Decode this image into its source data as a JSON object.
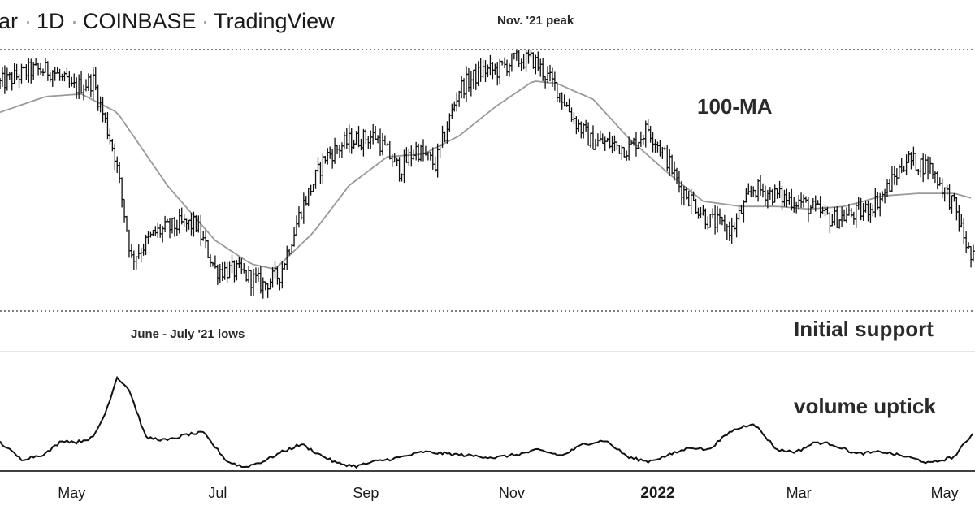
{
  "header": {
    "symbol_fragment": "ar",
    "interval": "1D",
    "exchange": "COINBASE",
    "source": "TradingView",
    "separator": "·"
  },
  "annotations": {
    "peak": "Nov. '21 peak",
    "lows": "June - July '21 lows",
    "ma": "100-MA",
    "support": "Initial support",
    "volume": "volume uptick"
  },
  "x_axis": {
    "ticks": [
      {
        "label": "May",
        "bold": false,
        "date": "2021-05-01"
      },
      {
        "label": "Jul",
        "bold": false,
        "date": "2021-07-01"
      },
      {
        "label": "Sep",
        "bold": false,
        "date": "2021-09-01"
      },
      {
        "label": "Nov",
        "bold": false,
        "date": "2021-11-01"
      },
      {
        "label": "2022",
        "bold": true,
        "date": "2022-01-01"
      },
      {
        "label": "Mar",
        "bold": false,
        "date": "2022-03-01"
      },
      {
        "label": "May",
        "bold": false,
        "date": "2022-05-01"
      }
    ]
  },
  "colors": {
    "price_bars": "#111111",
    "moving_average": "#9a9a9a",
    "volume_line": "#111111",
    "reference_lines": "#555555",
    "panel_divider": "#cccccc",
    "axis_line": "#000000"
  },
  "chart_data": [
    {
      "type": "ohlc",
      "y_axis_labels": "none shown",
      "x_range": [
        "2021-04-01",
        "2022-05-13"
      ],
      "reference_levels": [
        {
          "label": "Nov. '21 peak",
          "relative_level": 1.0
        },
        {
          "label": "June - July '21 lows / Initial support",
          "relative_level": 0.0
        }
      ],
      "price_series": {
        "note": "relative price levels on a 0 (June-July '21 lows) to 1 (Nov. '21 peak) scale",
        "x": [
          "2021-04-01",
          "2021-04-14",
          "2021-04-23",
          "2021-05-01",
          "2021-05-10",
          "2021-05-19",
          "2021-05-26",
          "2021-06-05",
          "2021-06-15",
          "2021-06-22",
          "2021-06-30",
          "2021-07-10",
          "2021-07-20",
          "2021-07-27",
          "2021-08-05",
          "2021-08-15",
          "2021-08-25",
          "2021-09-05",
          "2021-09-15",
          "2021-09-22",
          "2021-09-30",
          "2021-10-10",
          "2021-10-20",
          "2021-10-26",
          "2021-11-02",
          "2021-11-10",
          "2021-11-20",
          "2021-11-28",
          "2021-12-04",
          "2021-12-12",
          "2021-12-20",
          "2021-12-28",
          "2022-01-05",
          "2022-01-10",
          "2022-01-22",
          "2022-02-01",
          "2022-02-10",
          "2022-02-24",
          "2022-03-01",
          "2022-03-15",
          "2022-03-28",
          "2022-04-05",
          "2022-04-15",
          "2022-04-25",
          "2022-05-05",
          "2022-05-12"
        ],
        "y": [
          0.87,
          0.92,
          0.92,
          0.85,
          0.88,
          0.6,
          0.2,
          0.3,
          0.33,
          0.33,
          0.16,
          0.15,
          0.1,
          0.14,
          0.39,
          0.59,
          0.65,
          0.67,
          0.54,
          0.62,
          0.56,
          0.85,
          0.92,
          0.92,
          0.96,
          0.96,
          0.85,
          0.72,
          0.65,
          0.64,
          0.62,
          0.7,
          0.58,
          0.48,
          0.35,
          0.31,
          0.47,
          0.43,
          0.42,
          0.35,
          0.38,
          0.44,
          0.58,
          0.55,
          0.4,
          0.2
        ]
      },
      "moving_average": {
        "name": "100-MA",
        "x": [
          "2021-04-01",
          "2021-04-20",
          "2021-05-05",
          "2021-05-20",
          "2021-06-10",
          "2021-06-30",
          "2021-07-15",
          "2021-07-25",
          "2021-08-10",
          "2021-08-25",
          "2021-09-10",
          "2021-09-25",
          "2021-10-10",
          "2021-10-25",
          "2021-11-10",
          "2021-11-20",
          "2021-12-05",
          "2021-12-20",
          "2022-01-05",
          "2022-01-20",
          "2022-02-05",
          "2022-02-20",
          "2022-03-05",
          "2022-03-20",
          "2022-04-05",
          "2022-04-20",
          "2022-05-05",
          "2022-05-13"
        ],
        "y": [
          0.76,
          0.82,
          0.83,
          0.76,
          0.48,
          0.27,
          0.18,
          0.16,
          0.3,
          0.48,
          0.59,
          0.6,
          0.67,
          0.78,
          0.88,
          0.87,
          0.81,
          0.66,
          0.53,
          0.42,
          0.4,
          0.4,
          0.39,
          0.4,
          0.44,
          0.45,
          0.45,
          0.43
        ]
      }
    },
    {
      "type": "line",
      "series": [
        {
          "name": "volume",
          "x": [
            "2021-04-01",
            "2021-04-10",
            "2021-04-20",
            "2021-04-27",
            "2021-05-03",
            "2021-05-10",
            "2021-05-15",
            "2021-05-20",
            "2021-05-25",
            "2021-06-01",
            "2021-06-10",
            "2021-06-18",
            "2021-06-25",
            "2021-07-05",
            "2021-07-12",
            "2021-07-20",
            "2021-07-28",
            "2021-08-05",
            "2021-08-12",
            "2021-08-20",
            "2021-08-28",
            "2021-09-05",
            "2021-09-15",
            "2021-09-25",
            "2021-10-05",
            "2021-10-15",
            "2021-10-25",
            "2021-11-05",
            "2021-11-12",
            "2021-11-22",
            "2021-12-01",
            "2021-12-10",
            "2021-12-20",
            "2021-12-28",
            "2022-01-05",
            "2022-01-15",
            "2022-01-22",
            "2022-02-01",
            "2022-02-10",
            "2022-02-20",
            "2022-02-28",
            "2022-03-08",
            "2022-03-15",
            "2022-03-25",
            "2022-04-05",
            "2022-04-15",
            "2022-04-25",
            "2022-05-05",
            "2022-05-13"
          ],
          "y": [
            0.3,
            0.12,
            0.18,
            0.32,
            0.3,
            0.35,
            0.6,
            0.98,
            0.85,
            0.35,
            0.32,
            0.38,
            0.4,
            0.1,
            0.04,
            0.1,
            0.2,
            0.28,
            0.18,
            0.08,
            0.05,
            0.1,
            0.14,
            0.2,
            0.18,
            0.16,
            0.14,
            0.18,
            0.22,
            0.16,
            0.28,
            0.32,
            0.14,
            0.1,
            0.16,
            0.25,
            0.22,
            0.42,
            0.5,
            0.22,
            0.2,
            0.3,
            0.28,
            0.18,
            0.2,
            0.15,
            0.08,
            0.15,
            0.4
          ]
        }
      ]
    }
  ]
}
